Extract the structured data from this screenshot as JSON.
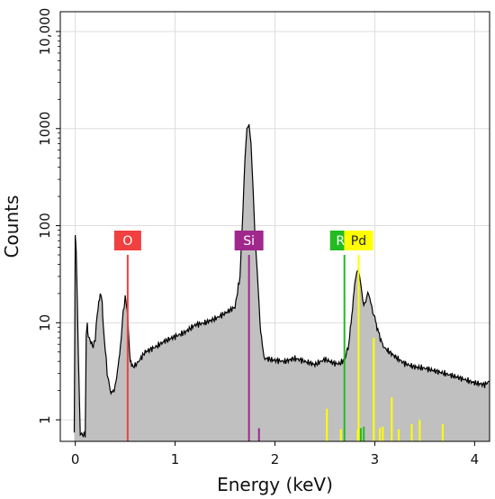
{
  "chart_data": {
    "type": "area",
    "xlabel": "Energy (keV)",
    "ylabel": "Counts",
    "xlim": [
      -0.15,
      4.15
    ],
    "ylim": [
      0.6,
      16000
    ],
    "yscale": "log",
    "grid": true,
    "x_ticks": [
      0,
      1,
      2,
      3,
      4
    ],
    "x_tick_labels": [
      "0",
      "1",
      "2",
      "3",
      "4"
    ],
    "y_ticks": [
      1,
      10,
      100,
      1000,
      10000
    ],
    "y_tick_labels": [
      "1",
      "10",
      "100",
      "1000",
      "10,000"
    ],
    "fill_color": "#c0c0c0",
    "line_color": "#000000",
    "spectrum": {
      "x": [
        -0.01,
        0.0,
        0.01,
        0.03,
        0.05,
        0.08,
        0.1,
        0.11,
        0.12,
        0.13,
        0.15,
        0.18,
        0.2,
        0.22,
        0.25,
        0.27,
        0.28,
        0.3,
        0.32,
        0.35,
        0.38,
        0.4,
        0.43,
        0.46,
        0.48,
        0.5,
        0.52,
        0.53,
        0.55,
        0.58,
        0.6,
        0.65,
        0.7,
        0.8,
        0.9,
        1.0,
        1.1,
        1.2,
        1.3,
        1.4,
        1.5,
        1.55,
        1.6,
        1.65,
        1.68,
        1.7,
        1.72,
        1.74,
        1.76,
        1.78,
        1.8,
        1.83,
        1.85,
        1.88,
        1.9,
        1.95,
        2.0,
        2.1,
        2.2,
        2.3,
        2.4,
        2.5,
        2.6,
        2.65,
        2.7,
        2.74,
        2.77,
        2.8,
        2.82,
        2.84,
        2.86,
        2.88,
        2.9,
        2.92,
        2.94,
        2.96,
        2.98,
        3.0,
        3.03,
        3.07,
        3.1,
        3.2,
        3.3,
        3.4,
        3.5,
        3.6,
        3.7,
        3.8,
        3.9,
        4.0,
        4.1,
        4.15
      ],
      "counts": [
        0.7,
        80,
        55,
        5,
        0.7,
        0.7,
        0.7,
        7.5,
        9.5,
        7.5,
        6.5,
        5.5,
        7,
        12,
        20,
        17,
        9,
        5.5,
        3,
        2,
        1.9,
        2.3,
        3.5,
        7,
        13,
        18,
        14,
        9,
        4,
        3.6,
        3.6,
        4.2,
        5,
        5.6,
        6.5,
        7.2,
        8,
        9.5,
        10,
        11,
        12.5,
        13.5,
        14.5,
        30,
        150,
        500,
        1000,
        1100,
        700,
        250,
        80,
        25,
        10,
        5,
        4.3,
        4.2,
        4.1,
        4,
        4.3,
        4,
        3.7,
        4.2,
        3.8,
        3.8,
        4.2,
        6,
        12,
        25,
        34,
        34,
        25,
        17,
        15,
        19,
        20,
        16,
        13,
        11,
        8.5,
        6.2,
        5.5,
        4.5,
        3.8,
        3.5,
        3.4,
        3.2,
        3,
        2.8,
        2.6,
        2.4,
        2.3,
        2.5
      ]
    },
    "element_markers": [
      {
        "label": "O",
        "energy": 0.525,
        "color": "#f04040"
      },
      {
        "label": "Si",
        "energy": 1.74,
        "color": "#a0288c"
      },
      {
        "label": "Rh",
        "energy": 2.696,
        "color": "#22bb22"
      },
      {
        "label": "Pd",
        "energy": 2.838,
        "color": "#ffff00"
      }
    ],
    "minor_lines": [
      {
        "energy": 1.84,
        "counts": 0.82,
        "color": "#a0288c"
      },
      {
        "energy": 2.52,
        "counts": 1.3,
        "color": "#ffff00"
      },
      {
        "energy": 2.66,
        "counts": 0.8,
        "color": "#ffff00"
      },
      {
        "energy": 2.83,
        "counts": 0.8,
        "color": "#ffff00"
      },
      {
        "energy": 2.86,
        "counts": 0.82,
        "color": "#22bb22"
      },
      {
        "energy": 2.89,
        "counts": 0.85,
        "color": "#22bb22"
      },
      {
        "energy": 2.99,
        "counts": 7.0,
        "color": "#ffff00"
      },
      {
        "energy": 3.05,
        "counts": 0.82,
        "color": "#ffff00"
      },
      {
        "energy": 3.08,
        "counts": 0.85,
        "color": "#ffff00"
      },
      {
        "energy": 3.17,
        "counts": 1.7,
        "color": "#ffff00"
      },
      {
        "energy": 3.24,
        "counts": 0.8,
        "color": "#ffff00"
      },
      {
        "energy": 3.37,
        "counts": 0.9,
        "color": "#ffff00"
      },
      {
        "energy": 3.45,
        "counts": 1.0,
        "color": "#ffff00"
      },
      {
        "energy": 3.68,
        "counts": 0.9,
        "color": "#ffff00"
      }
    ]
  }
}
